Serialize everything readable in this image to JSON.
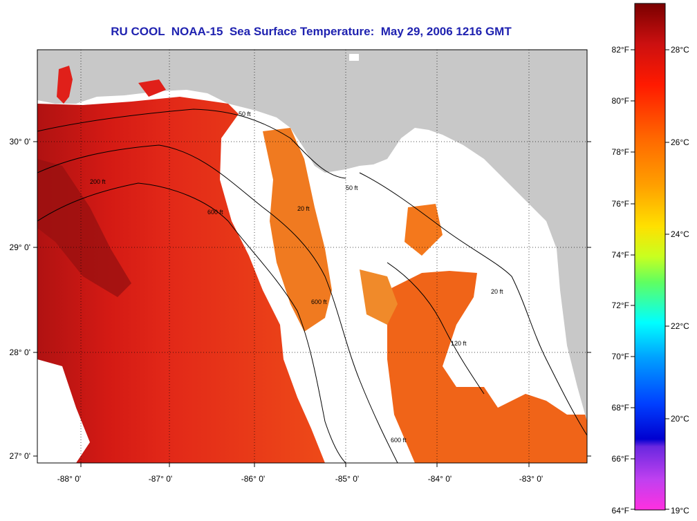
{
  "title": "RU COOL  NOAA-15  Sea Surface Temperature:  May 29, 2006 1216 GMT",
  "map": {
    "x_ticks": [
      "-88° 0'",
      "-87° 0'",
      "-86° 0'",
      "-85° 0'",
      "-84° 0'",
      "-83° 0'"
    ],
    "y_ticks": [
      "30° 0'",
      "29° 0'",
      "28° 0'",
      "27° 0'"
    ],
    "contour_labels": [
      "50 ft",
      "200 ft",
      "600 ft",
      "20 ft",
      "50 ft",
      "600 ft",
      "120 ft",
      "600 ft",
      "20 ft"
    ],
    "colors": {
      "land": "#c8c8c8",
      "cloud": "#ffffff",
      "warm_water": "#e0201a",
      "warmest_water": "#9a0f0f",
      "mid_water": "#f07020"
    }
  },
  "colorbar": {
    "fahrenheit_labels": [
      "82°F",
      "80°F",
      "78°F",
      "76°F",
      "74°F",
      "72°F",
      "70°F",
      "68°F",
      "66°F",
      "64°F"
    ],
    "celsius_labels": [
      "28°C",
      "26°C",
      "24°C",
      "22°C",
      "20°C",
      "19°C"
    ]
  }
}
